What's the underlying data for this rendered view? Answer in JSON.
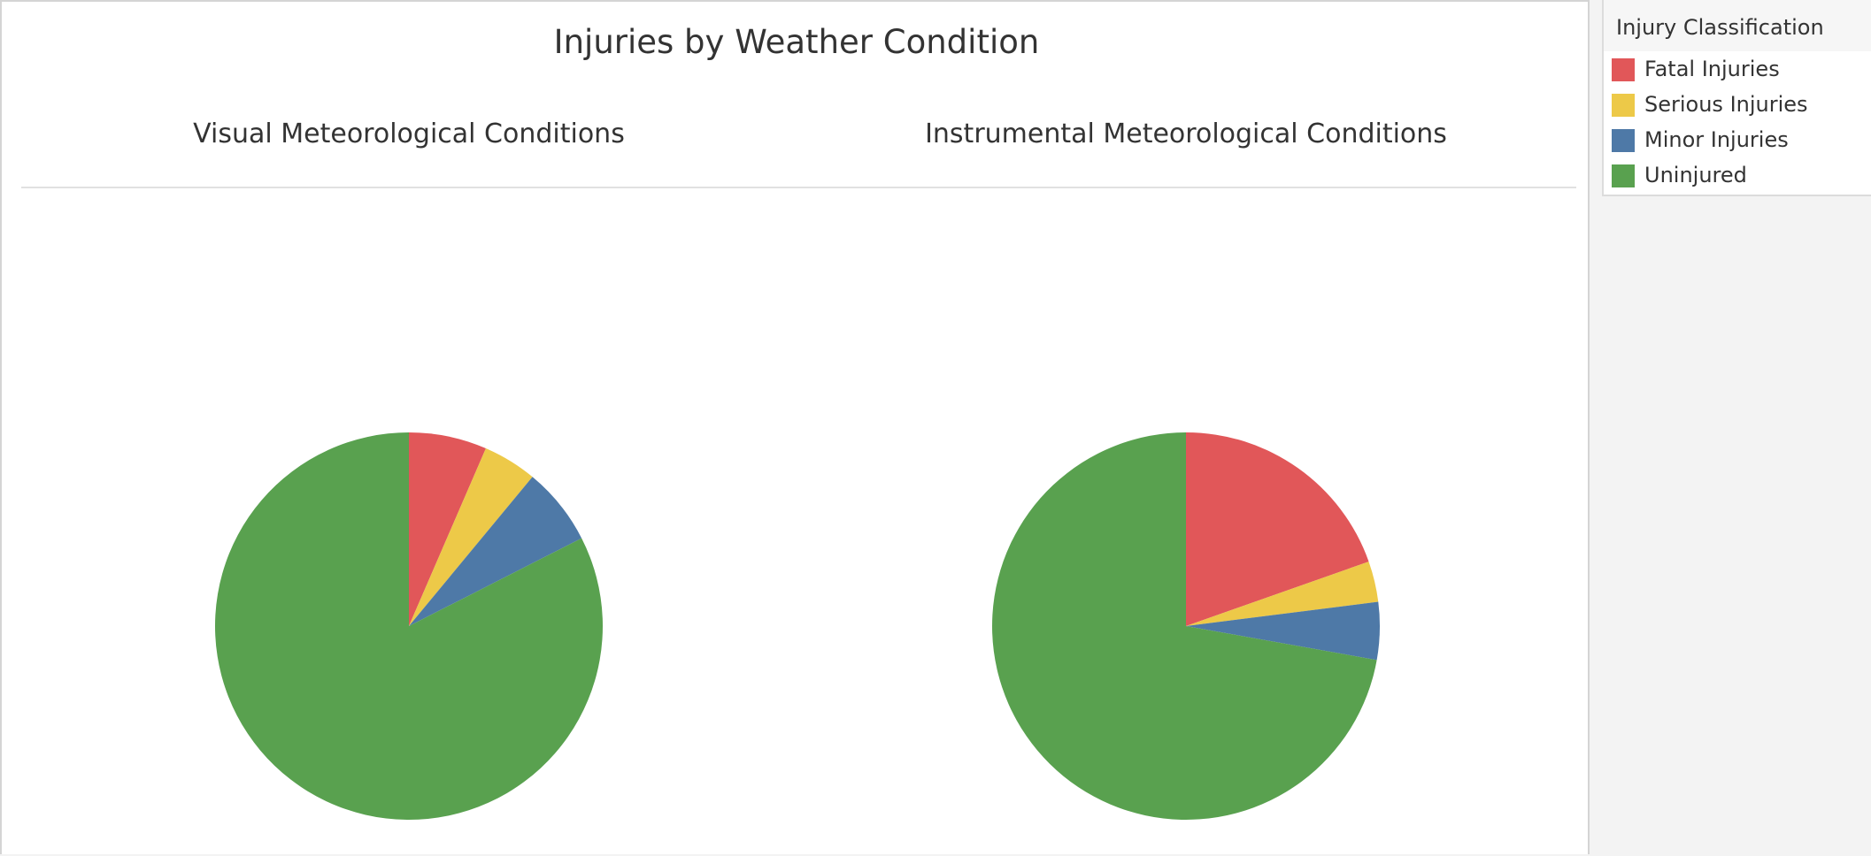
{
  "title": "Injuries by Weather Condition",
  "legend": {
    "title": "Injury Classification",
    "items": [
      {
        "label": "Fatal Injuries",
        "color": "#e15759"
      },
      {
        "label": "Serious Injuries",
        "color": "#edc948"
      },
      {
        "label": "Minor Injuries",
        "color": "#4e79a7"
      },
      {
        "label": "Uninjured",
        "color": "#59a14f"
      }
    ]
  },
  "chart_data": [
    {
      "type": "pie",
      "title": "Visual Meteorological Conditions",
      "categories": [
        "Fatal Injuries",
        "Serious Injuries",
        "Minor Injuries",
        "Uninjured"
      ],
      "values": [
        6.5,
        4.5,
        6.5,
        82.5
      ],
      "unit": "percent"
    },
    {
      "type": "pie",
      "title": "Instrumental Meteorological Conditions",
      "categories": [
        "Fatal Injuries",
        "Serious Injuries",
        "Minor Injuries",
        "Uninjured"
      ],
      "values": [
        19.6,
        3.4,
        4.8,
        72.2
      ],
      "unit": "percent"
    }
  ]
}
